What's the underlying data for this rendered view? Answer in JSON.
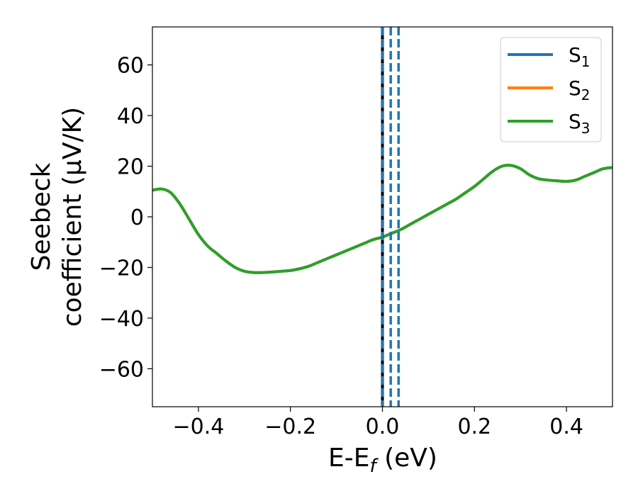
{
  "chart_data": {
    "type": "line",
    "title": "",
    "xlabel": {
      "main": "E-E",
      "sub": "f",
      "rest": " (eV)"
    },
    "ylabel": {
      "line1": "Seebeck",
      "line2": "coefficient  (μV/K)"
    },
    "xlim": [
      -0.5,
      0.5
    ],
    "ylim": [
      -75,
      75
    ],
    "grid": false,
    "legend_position": "top-right",
    "x_ticks": [
      -0.4,
      -0.2,
      0.0,
      0.2,
      0.4
    ],
    "x_tick_labels": [
      "−0.4",
      "−0.2",
      "0.0",
      "0.2",
      "0.4"
    ],
    "y_ticks": [
      60,
      40,
      20,
      0,
      -20,
      -40,
      -60
    ],
    "y_tick_labels": [
      "60",
      "40",
      "20",
      "0",
      "−20",
      "−40",
      "−60"
    ],
    "series": [
      {
        "name": "S",
        "sub": "1",
        "color": "#1f77b4"
      },
      {
        "name": "S",
        "sub": "2",
        "color": "#ff7f0e"
      },
      {
        "name": "S",
        "sub": "3",
        "color": "#2ca02c"
      }
    ],
    "curve": {
      "x": [
        -0.5,
        -0.48,
        -0.46,
        -0.44,
        -0.42,
        -0.4,
        -0.38,
        -0.36,
        -0.34,
        -0.32,
        -0.3,
        -0.28,
        -0.26,
        -0.24,
        -0.22,
        -0.2,
        -0.18,
        -0.16,
        -0.14,
        -0.12,
        -0.1,
        -0.08,
        -0.06,
        -0.04,
        -0.02,
        0.0,
        0.02,
        0.04,
        0.06,
        0.08,
        0.1,
        0.12,
        0.14,
        0.16,
        0.18,
        0.2,
        0.22,
        0.24,
        0.26,
        0.28,
        0.3,
        0.32,
        0.34,
        0.36,
        0.38,
        0.4,
        0.42,
        0.44,
        0.46,
        0.48,
        0.5
      ],
      "y": [
        10.5,
        11,
        9.5,
        5,
        -1,
        -7,
        -11.5,
        -14.5,
        -17.5,
        -20,
        -21.5,
        -22,
        -22,
        -21.8,
        -21.5,
        -21.2,
        -20.5,
        -19.5,
        -18,
        -16.5,
        -15,
        -13.5,
        -12,
        -10.5,
        -9,
        -8,
        -6.5,
        -5,
        -3,
        -1,
        1,
        3,
        5,
        7,
        9.5,
        12,
        15,
        18,
        20,
        20.3,
        19,
        16.5,
        15,
        14.5,
        14.2,
        14,
        14.5,
        16,
        17.5,
        19,
        19.5
      ]
    },
    "vertical_lines": [
      {
        "x": 0.0,
        "style": "solid",
        "color": "#000000"
      },
      {
        "x": 0.0,
        "style": "dashed",
        "color": "#1f77b4"
      },
      {
        "x": 0.018,
        "style": "dashed",
        "color": "#1f77b4"
      },
      {
        "x": 0.035,
        "style": "dashed",
        "color": "#1f77b4"
      }
    ]
  }
}
